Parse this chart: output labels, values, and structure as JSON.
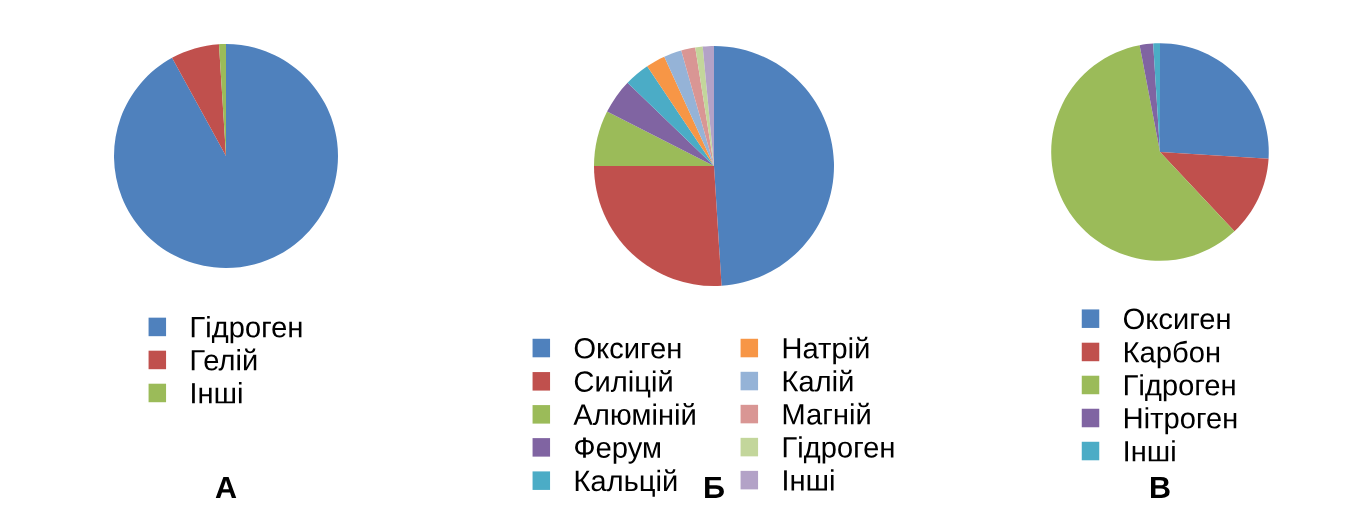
{
  "chart_data": [
    {
      "type": "pie",
      "title": "А",
      "legend": "bottom",
      "categories": [
        "Гідроген",
        "Гелій",
        "Інші"
      ],
      "values": [
        92,
        7,
        1
      ],
      "colors": [
        "#4f81bd",
        "#c0504d",
        "#9bbb59"
      ]
    },
    {
      "type": "pie",
      "title": "Б",
      "legend": "bottom",
      "categories": [
        "Оксиген",
        "Силіцій",
        "Алюміній",
        "Ферум",
        "Кальцій",
        "Натрій",
        "Калій",
        "Магній",
        "Гідроген",
        "Інші"
      ],
      "values": [
        49,
        26,
        7.5,
        4.7,
        3.4,
        2.6,
        2.4,
        1.9,
        1,
        1.5
      ],
      "colors": [
        "#4f81bd",
        "#c0504d",
        "#9bbb59",
        "#8064a2",
        "#4bacc6",
        "#f79646",
        "#95b3d7",
        "#d99694",
        "#c3d69b",
        "#b3a2c7"
      ]
    },
    {
      "type": "pie",
      "title": "В",
      "legend": "bottom",
      "categories": [
        "Оксиген",
        "Карбон",
        "Гідроген",
        "Нітроген",
        "Інші"
      ],
      "values": [
        26,
        12,
        59,
        2,
        1
      ],
      "colors": [
        "#4f81bd",
        "#c0504d",
        "#9bbb59",
        "#8064a2",
        "#4bacc6"
      ]
    }
  ]
}
